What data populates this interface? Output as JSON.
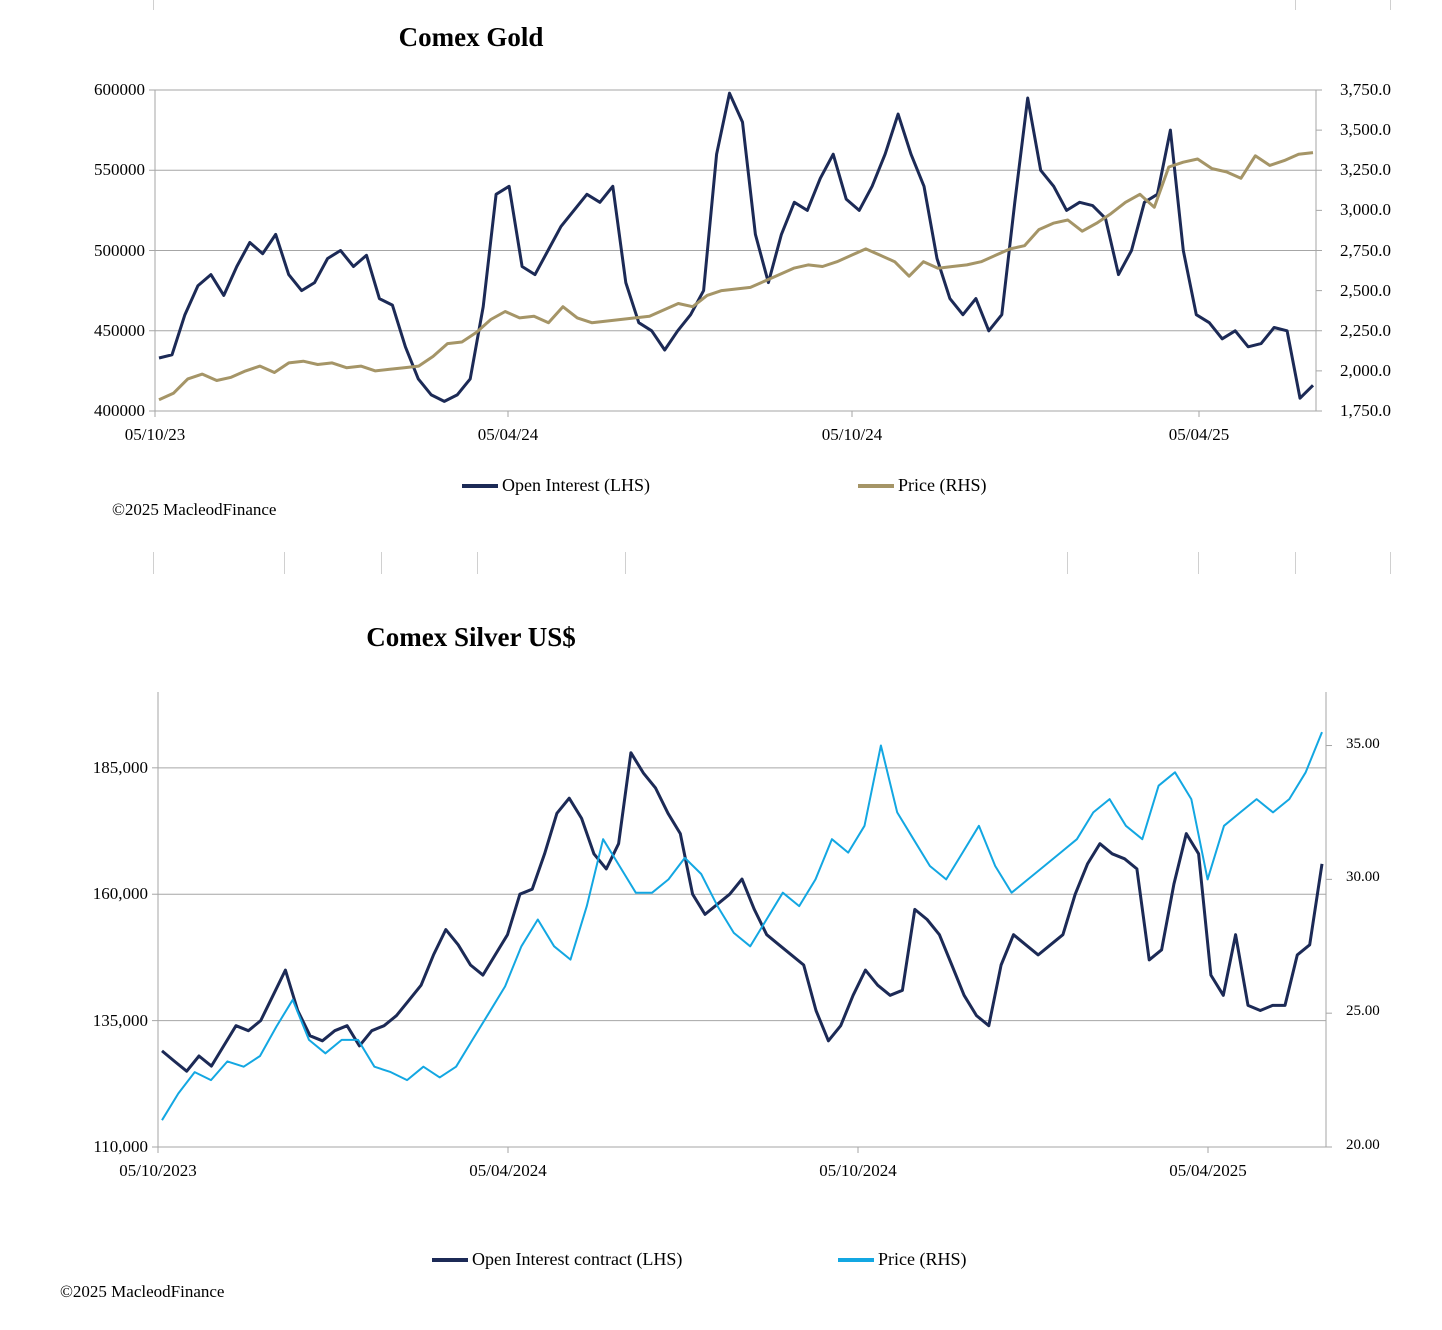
{
  "colors": {
    "oi": "#1c2a56",
    "gold": "#a59567",
    "silver": "#13a7e2",
    "grid": "#a6a6a6"
  },
  "chart_data": [
    {
      "type": "line",
      "title": "Comex Gold",
      "x_ticks": [
        "05/10/23",
        "05/04/24",
        "05/10/24",
        "05/04/25"
      ],
      "y_left": {
        "min": 400000,
        "max": 600000,
        "ticks": [
          "600000",
          "550000",
          "500000",
          "450000",
          "400000"
        ]
      },
      "y_right": {
        "min": 1750,
        "max": 3750,
        "ticks": [
          "3,750.0",
          "3,500.0",
          "3,250.0",
          "3,000.0",
          "2,750.0",
          "2,500.0",
          "2,250.0",
          "2,000.0",
          "1,750.0"
        ]
      },
      "series": [
        {
          "name": "Open Interest (LHS)",
          "axis": "left",
          "values": [
            433000,
            435000,
            460000,
            478000,
            485000,
            472000,
            490000,
            505000,
            498000,
            510000,
            485000,
            475000,
            480000,
            495000,
            500000,
            490000,
            497000,
            470000,
            466000,
            440000,
            420000,
            410000,
            406000,
            410000,
            420000,
            465000,
            535000,
            540000,
            490000,
            485000,
            500000,
            515000,
            525000,
            535000,
            530000,
            540000,
            480000,
            455000,
            450000,
            438000,
            450000,
            460000,
            475000,
            560000,
            598000,
            580000,
            510000,
            480000,
            510000,
            530000,
            525000,
            545000,
            560000,
            532000,
            525000,
            540000,
            560000,
            585000,
            560000,
            540000,
            495000,
            470000,
            460000,
            470000,
            450000,
            460000,
            530000,
            595000,
            550000,
            540000,
            525000,
            530000,
            528000,
            520000,
            485000,
            500000,
            530000,
            535000,
            575000,
            500000,
            460000,
            455000,
            445000,
            450000,
            440000,
            442000,
            452000,
            450000,
            408000,
            416000
          ]
        },
        {
          "name": "Price (RHS)",
          "axis": "right",
          "values": [
            1820,
            1860,
            1950,
            1980,
            1940,
            1960,
            2000,
            2030,
            1990,
            2050,
            2060,
            2040,
            2050,
            2020,
            2030,
            2000,
            2010,
            2020,
            2030,
            2090,
            2170,
            2180,
            2240,
            2320,
            2370,
            2330,
            2340,
            2300,
            2400,
            2330,
            2300,
            2310,
            2320,
            2330,
            2340,
            2380,
            2420,
            2400,
            2470,
            2500,
            2510,
            2520,
            2560,
            2600,
            2640,
            2660,
            2650,
            2680,
            2720,
            2760,
            2720,
            2680,
            2590,
            2680,
            2640,
            2650,
            2660,
            2680,
            2720,
            2760,
            2780,
            2880,
            2920,
            2940,
            2870,
            2920,
            2980,
            3050,
            3100,
            3020,
            3270,
            3300,
            3320,
            3260,
            3240,
            3200,
            3340,
            3280,
            3310,
            3350,
            3360
          ]
        }
      ],
      "credit": "©2025 MacleodFinance"
    },
    {
      "type": "line",
      "title": "Comex Silver US$",
      "x_ticks": [
        "05/10/2023",
        "05/04/2024",
        "05/10/2024",
        "05/04/2025"
      ],
      "y_left": {
        "min": 110000,
        "max": 200000,
        "ticks": [
          "185,000",
          "160,000",
          "135,000",
          "110,000"
        ]
      },
      "y_right": {
        "min": 20,
        "max": 37,
        "ticks": [
          "35.00",
          "30.00",
          "25.00",
          "20.00"
        ]
      },
      "series": [
        {
          "name": "Open Interest contract (LHS)",
          "axis": "left",
          "values": [
            129000,
            127000,
            125000,
            128000,
            126000,
            130000,
            134000,
            133000,
            135000,
            140000,
            145000,
            137000,
            132000,
            131000,
            133000,
            134000,
            130000,
            133000,
            134000,
            136000,
            139000,
            142000,
            148000,
            153000,
            150000,
            146000,
            144000,
            148000,
            152000,
            160000,
            161000,
            168000,
            176000,
            179000,
            175000,
            168000,
            165000,
            170000,
            188000,
            184000,
            181000,
            176000,
            172000,
            160000,
            156000,
            158000,
            160000,
            163000,
            157000,
            152000,
            150000,
            148000,
            146000,
            137000,
            131000,
            134000,
            140000,
            145000,
            142000,
            140000,
            141000,
            157000,
            155000,
            152000,
            146000,
            140000,
            136000,
            134000,
            146000,
            152000,
            150000,
            148000,
            150000,
            152000,
            160000,
            166000,
            170000,
            168000,
            167000,
            165000,
            147000,
            149000,
            162000,
            172000,
            168000,
            144000,
            140000,
            152000,
            138000,
            137000,
            138000,
            138000,
            148000,
            150000,
            166000
          ]
        },
        {
          "name": "Price (RHS)",
          "axis": "right",
          "values": [
            21.0,
            22.0,
            22.8,
            22.5,
            23.2,
            23.0,
            23.4,
            24.5,
            25.5,
            24.0,
            23.5,
            24.0,
            24.0,
            23.0,
            22.8,
            22.5,
            23.0,
            22.6,
            23.0,
            24.0,
            25.0,
            26.0,
            27.5,
            28.5,
            27.5,
            27.0,
            29.0,
            31.5,
            30.5,
            29.5,
            29.5,
            30.0,
            30.8,
            30.2,
            29.0,
            28.0,
            27.5,
            28.5,
            29.5,
            29.0,
            30.0,
            31.5,
            31.0,
            32.0,
            35.0,
            32.5,
            31.5,
            30.5,
            30.0,
            31.0,
            32.0,
            30.5,
            29.5,
            30.0,
            30.5,
            31.0,
            31.5,
            32.5,
            33.0,
            32.0,
            31.5,
            33.5,
            34.0,
            33.0,
            30.0,
            32.0,
            32.5,
            33.0,
            32.5,
            33.0,
            34.0,
            35.5
          ]
        }
      ],
      "credit": "©2025 MacleodFinance"
    }
  ]
}
